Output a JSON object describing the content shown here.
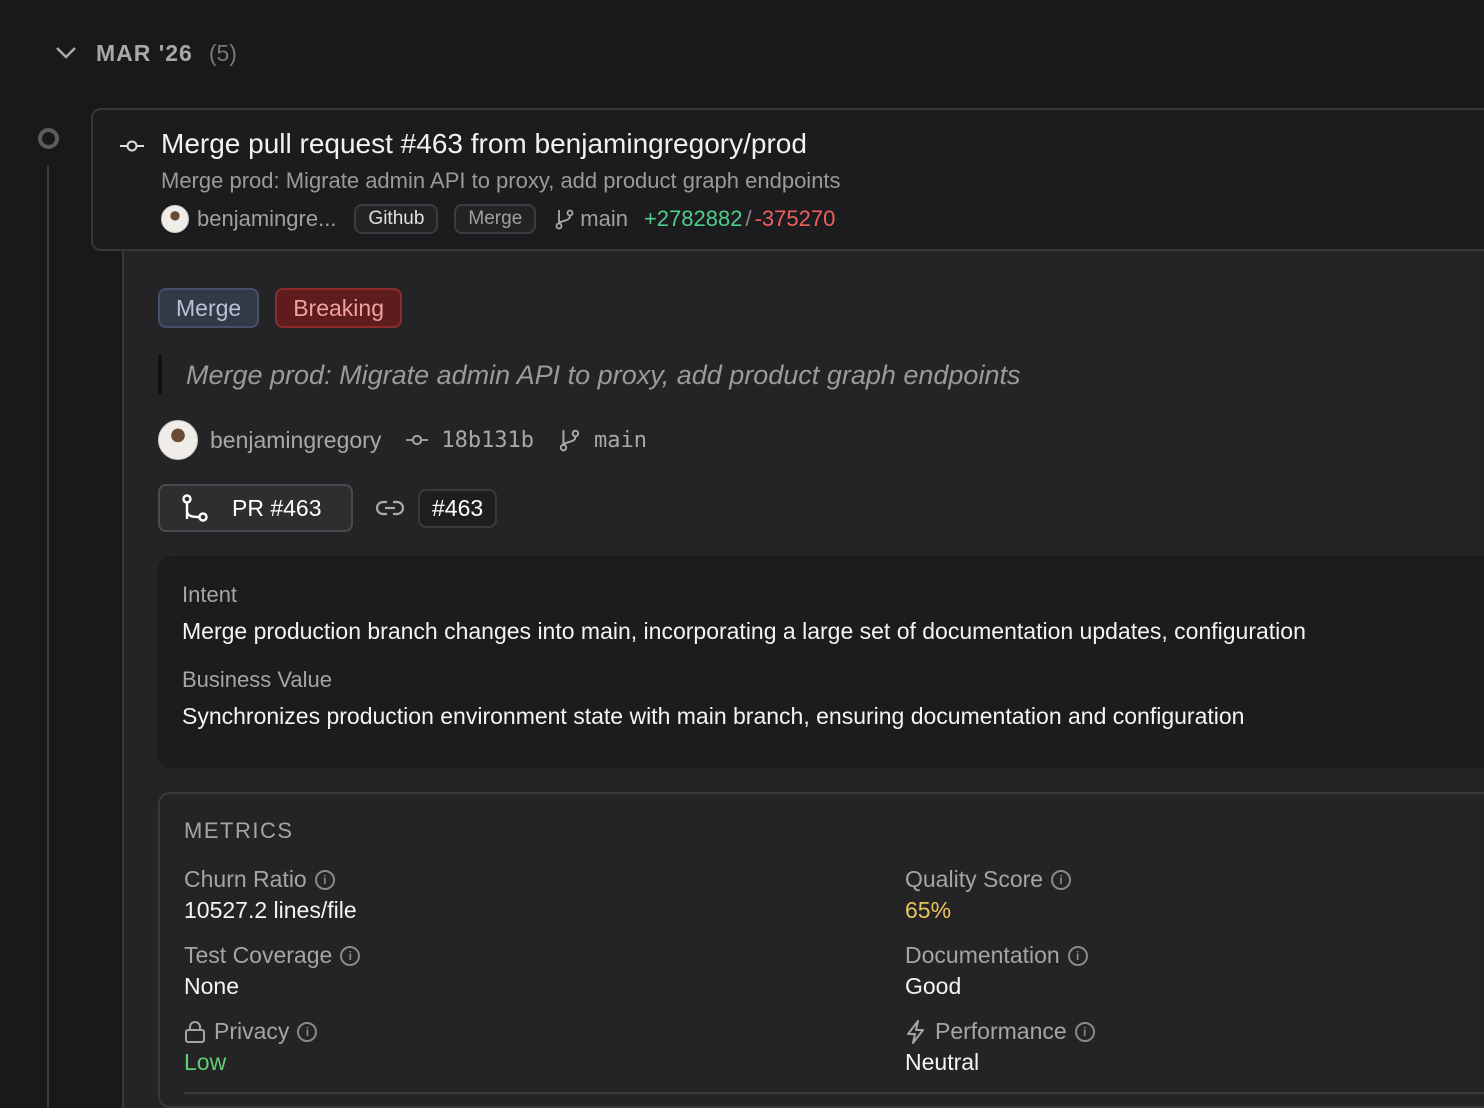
{
  "group": {
    "title": "MAR '26",
    "count": "(5)"
  },
  "commit": {
    "title": "Merge pull request #463 from benjamingregory/prod",
    "subtitle": "Merge prod: Migrate admin API to proxy, add product graph endpoints",
    "author_short": "benjamingre...",
    "source_chip": "Github",
    "type_chip": "Merge",
    "branch": "main",
    "additions": "+2782882",
    "separator": "/",
    "deletions": "-375270"
  },
  "detail": {
    "tags": [
      {
        "label": "Merge",
        "color": "#323a48"
      },
      {
        "label": "Breaking",
        "color": "#5e1c1c"
      }
    ],
    "quote": "Merge prod: Migrate admin API to proxy, add product graph endpoints",
    "author": "benjamingregory",
    "sha": "18b131b",
    "branch": "main",
    "pr_label": "PR #463",
    "issue_label": "#463",
    "intent_label": "Intent",
    "intent": "Merge production branch changes into main, incorporating a large set of documentation updates, configuration",
    "value_label": "Business Value",
    "value": "Synchronizes production environment state with main branch, ensuring documentation and configuration",
    "metrics": {
      "heading": "METRICS",
      "churn": {
        "label": "Churn Ratio",
        "value": "10527.2 lines/file"
      },
      "quality": {
        "label": "Quality Score",
        "value": "65%",
        "color": "#e8c65a"
      },
      "coverage": {
        "label": "Test Coverage",
        "value": "None"
      },
      "docs": {
        "label": "Documentation",
        "value": "Good"
      },
      "privacy": {
        "label": "Privacy",
        "value": "Low",
        "color": "#5fcf6f"
      },
      "performance": {
        "label": "Performance",
        "value": "Neutral"
      }
    }
  },
  "colors": {
    "additions": "#4ccf8a",
    "deletions": "#ef5f5f"
  }
}
